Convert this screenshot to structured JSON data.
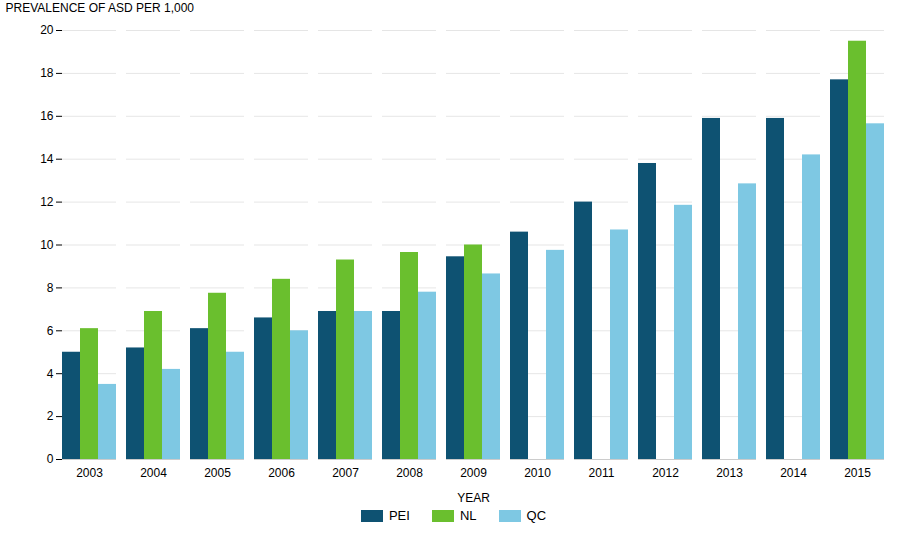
{
  "chart_data": {
    "type": "bar",
    "xlabel": "YEAR",
    "ylabel": "PREVALENCE OF ASD PER 1,000",
    "categories": [
      "2003",
      "2004",
      "2005",
      "2006",
      "2007",
      "2008",
      "2009",
      "2010",
      "2011",
      "2012",
      "2013",
      "2014",
      "2015"
    ],
    "series": [
      {
        "name": "PEI",
        "color": "#0e5272",
        "values": [
          5.0,
          5.2,
          6.1,
          6.6,
          6.9,
          6.9,
          9.45,
          10.6,
          12.0,
          13.8,
          15.9,
          15.9,
          17.7
        ]
      },
      {
        "name": "NL",
        "color": "#6abf2e",
        "values": [
          6.1,
          6.9,
          7.75,
          8.4,
          9.3,
          9.65,
          10.0,
          null,
          null,
          null,
          null,
          null,
          19.5
        ]
      },
      {
        "name": "QC",
        "color": "#7ec8e3",
        "values": [
          3.5,
          4.2,
          5.0,
          6.0,
          6.9,
          7.8,
          8.65,
          9.75,
          10.7,
          11.85,
          12.85,
          14.2,
          15.65
        ]
      }
    ],
    "ylim": [
      0,
      20
    ],
    "yticks": [
      0,
      2,
      4,
      6,
      8,
      10,
      12,
      14,
      16,
      18,
      20
    ],
    "grid": true,
    "legend": "bottom"
  }
}
